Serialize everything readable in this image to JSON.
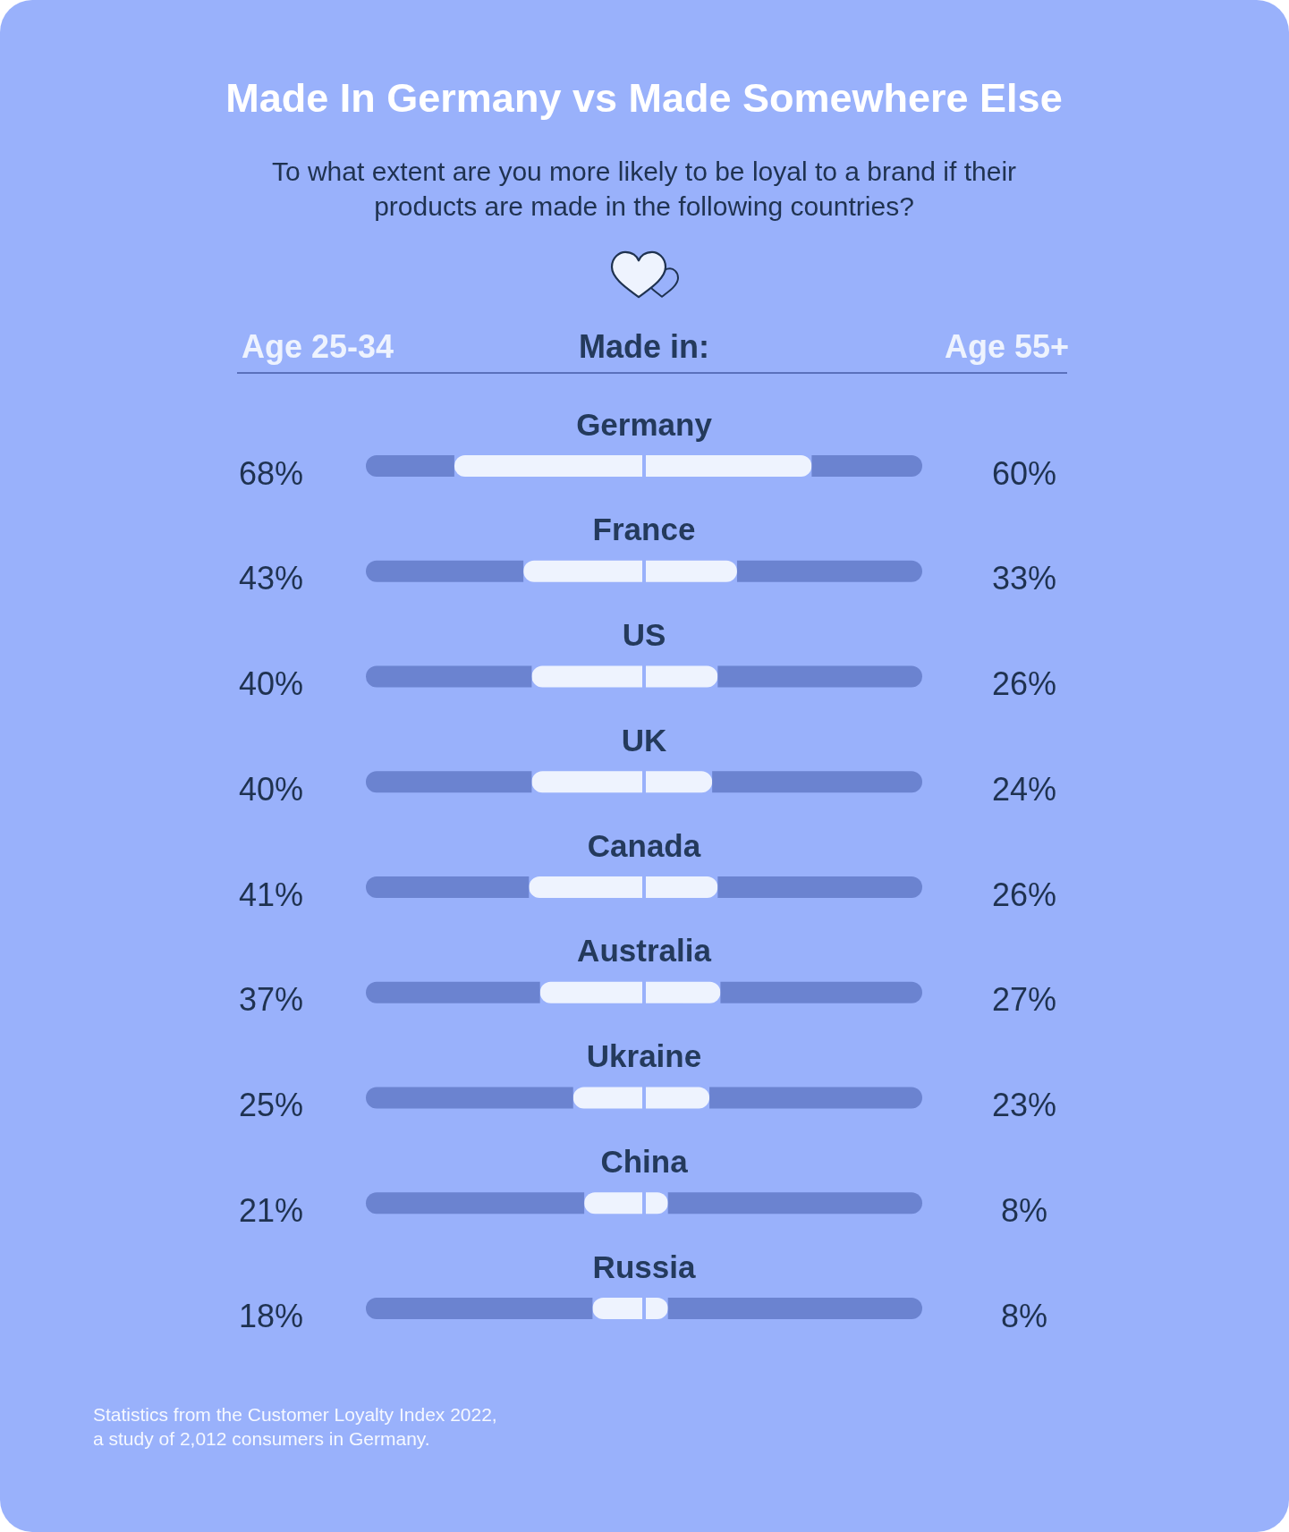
{
  "chart_data": [
    {
      "type": "bar",
      "orientation": "horizontal",
      "stacked": true,
      "title": "Made In Germany vs Made Somewhere Else",
      "subtitle": "To what extent are you more likely to be loyal to a brand if their products are made in the following countries?",
      "ylabel": "Made in:",
      "categories": [
        "Germany",
        "France",
        "US",
        "UK",
        "Canada",
        "Australia",
        "Ukraine",
        "China",
        "Russia"
      ],
      "xlim": [
        100,
        0
      ],
      "tick_labels": "y",
      "legend": "top left",
      "series": [
        {
          "name": "Age 25-34",
          "color": "#eef3fe",
          "values": [
            68,
            43,
            40,
            40,
            41,
            37,
            25,
            21,
            18
          ],
          "value_labels": [
            "68%",
            "43%",
            "40%",
            "40%",
            "41%",
            "37%",
            "25%",
            "21%",
            "18%"
          ]
        },
        {
          "color": "#6b83d0",
          "values": [
            32,
            57,
            60,
            60,
            59,
            63,
            75,
            79,
            82
          ]
        }
      ],
      "annotations": [
        "Statistics from the Customer Loyalty Index 2022, a study of 2,012 consumers in Germany."
      ]
    },
    {
      "type": "bar",
      "orientation": "horizontal",
      "stacked": true,
      "categories": [
        null,
        null,
        null,
        null,
        null,
        null,
        null,
        null,
        null
      ],
      "xlim": [
        0,
        100
      ],
      "tick_labels": false,
      "legend": "top right",
      "series": [
        {
          "name": "Age 55+",
          "color": "#eef3fe",
          "values": [
            60,
            33,
            26,
            24,
            26,
            27,
            23,
            8,
            8
          ],
          "value_labels": [
            "60%",
            "33%",
            "26%",
            "24%",
            "26%",
            "27%",
            "23%",
            "8%",
            "8%"
          ]
        },
        {
          "color": "#6b83d0",
          "values": [
            40,
            67,
            74,
            76,
            74,
            73,
            77,
            92,
            92
          ]
        }
      ]
    }
  ]
}
